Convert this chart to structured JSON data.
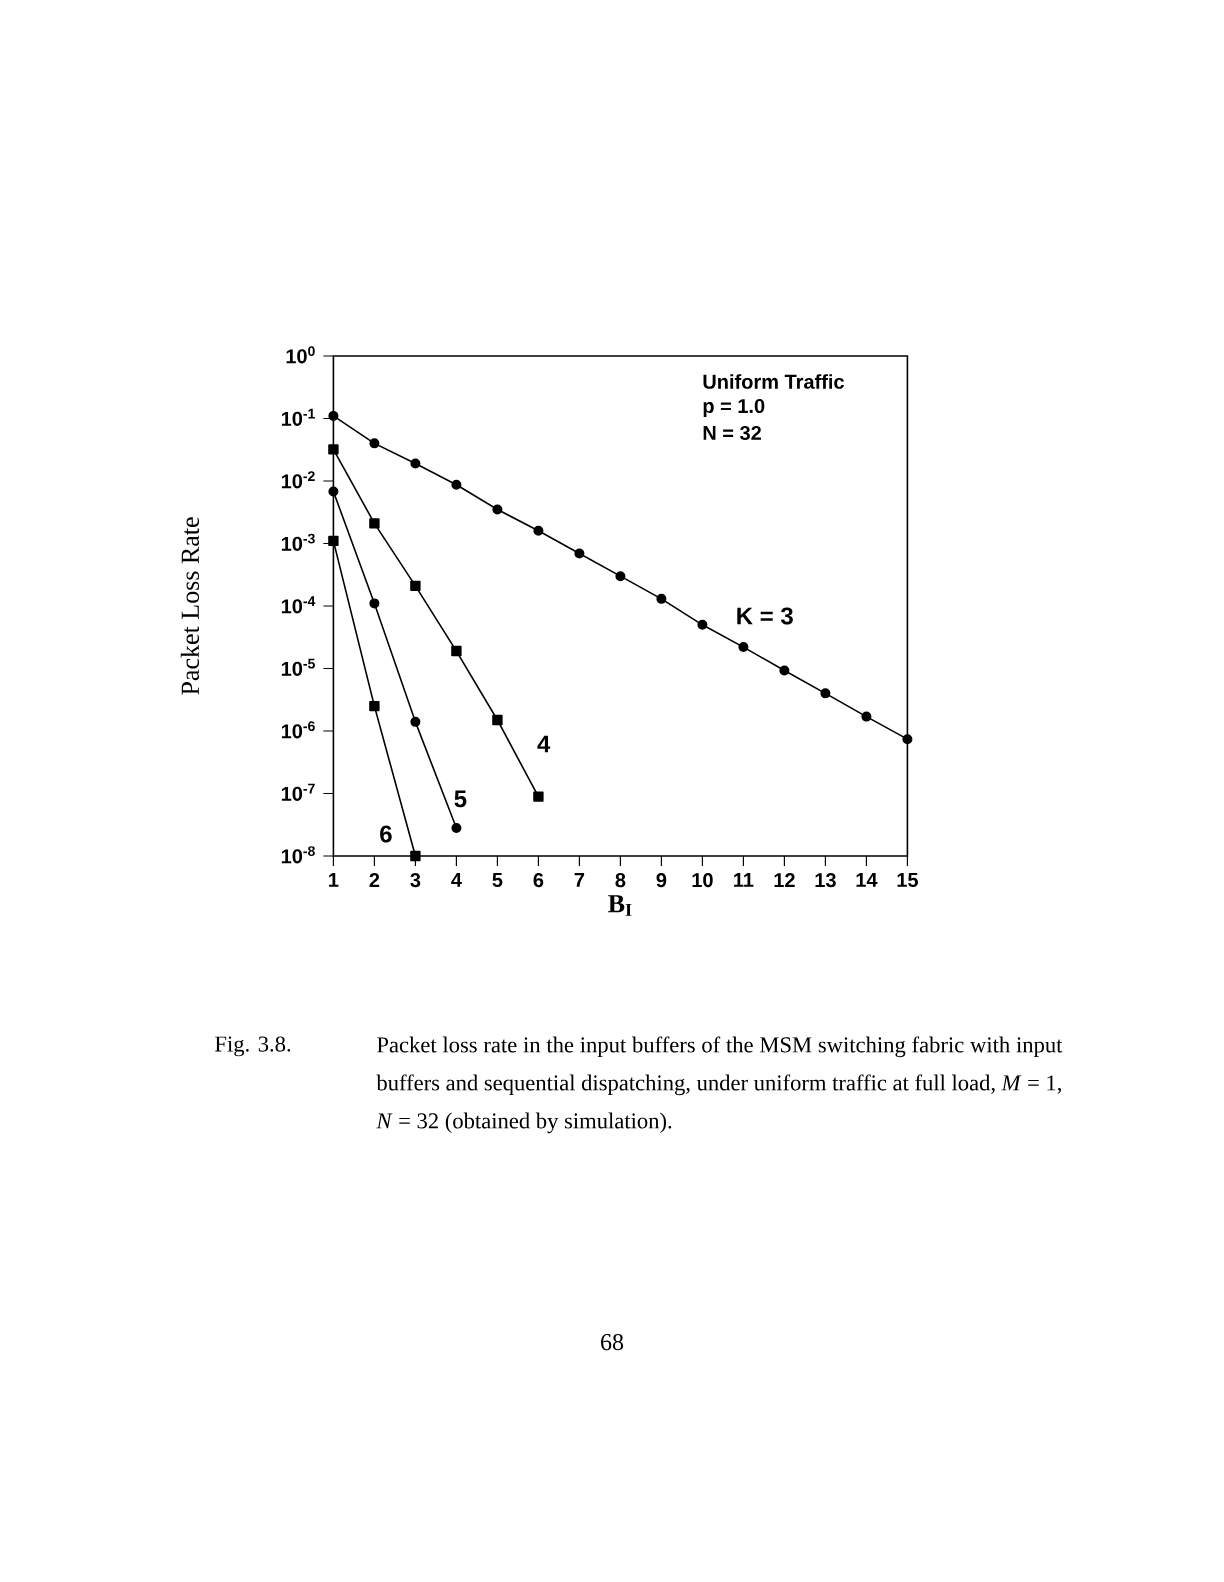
{
  "chart_data": {
    "type": "line",
    "xlabel": "B$_{I}$",
    "ylabel": "Packet Loss Rate",
    "log": "y",
    "x": [
      1,
      2,
      3,
      4,
      5,
      6,
      7,
      8,
      9,
      10,
      11,
      12,
      13,
      14,
      15
    ],
    "xlim": [
      1,
      15
    ],
    "xticks": [
      1,
      2,
      3,
      4,
      5,
      6,
      7,
      8,
      9,
      10,
      11,
      12,
      13,
      14,
      15
    ],
    "ylim": [
      1e-08,
      1
    ],
    "yticks": [
      {
        "value": 1,
        "label": "10$^{0}$"
      },
      {
        "value": 0.1,
        "label": "10$^{-1}$"
      },
      {
        "value": 0.01,
        "label": "10$^{-2}$"
      },
      {
        "value": 0.001,
        "label": "10$^{-3}$"
      },
      {
        "value": 0.0001,
        "label": "10$^{-4}$"
      },
      {
        "value": 1e-05,
        "label": "10$^{-5}$"
      },
      {
        "value": 1e-06,
        "label": "10$^{-6}$"
      },
      {
        "value": 1e-07,
        "label": "10$^{-7}$"
      },
      {
        "value": 1e-08,
        "label": "10$^{-8}$"
      }
    ],
    "series": [
      {
        "name": "K = 3",
        "color": "#000000",
        "marker": "circle",
        "values": [
          0.11,
          0.04,
          0.019,
          0.0087,
          0.0035,
          0.0016,
          0.00069,
          0.0003,
          0.00013,
          5e-05,
          2.2e-05,
          9.3e-06,
          4e-06,
          1.7e-06,
          7.4e-07
        ]
      },
      {
        "name": "4",
        "color": "#000000",
        "marker": "square",
        "x": [
          1,
          2,
          3,
          4,
          5,
          6
        ],
        "values": [
          0.032,
          0.0021,
          0.00021,
          1.9e-05,
          1.5e-06,
          8.9e-08
        ]
      },
      {
        "name": "5",
        "color": "#000000",
        "marker": "circle",
        "x": [
          1,
          2,
          3,
          4
        ],
        "values": [
          0.0068,
          0.00011,
          1.4e-06,
          2.8e-08
        ]
      },
      {
        "name": "6",
        "color": "#000000",
        "marker": "square",
        "x": [
          1,
          2,
          3
        ],
        "values": [
          0.0011,
          2.5e-06,
          1e-08
        ]
      }
    ],
    "annotations": [
      "Uniform Traffic",
      "p = 1.0",
      "N = 32",
      "Fig. 3.8.",
      "Packet loss rate in the input buffers of the MSM switching fabric with input buffers and sequential dispatching, under uniform traffic at full load, *M* = 1, *N* = 32 (obtained by simulation).",
      "68"
    ]
  }
}
